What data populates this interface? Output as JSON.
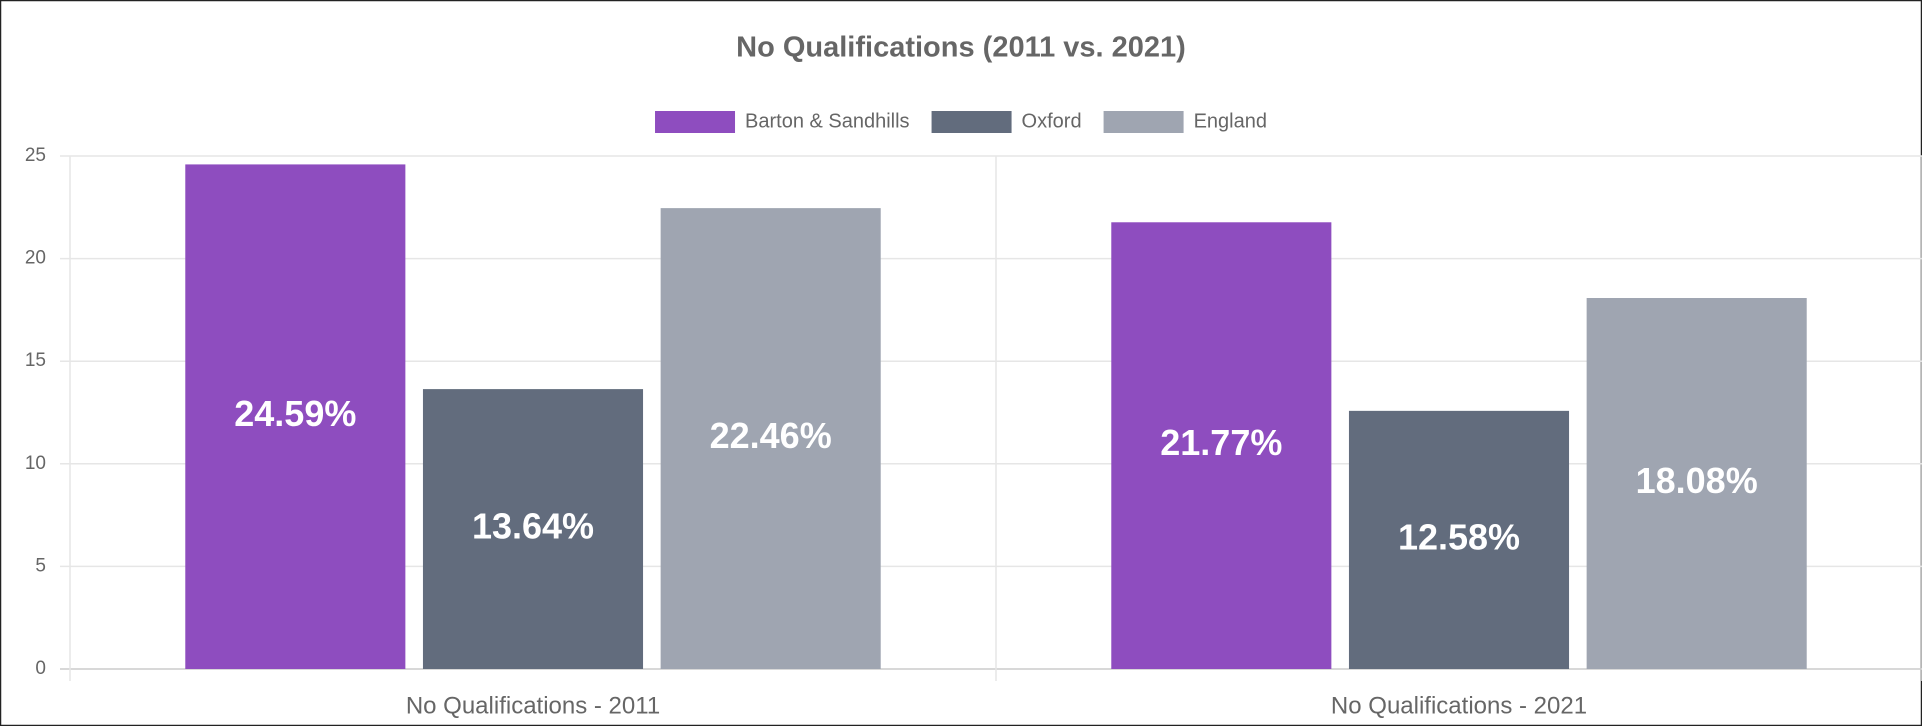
{
  "chart_data": {
    "type": "bar",
    "title": "No Qualifications (2011 vs. 2021)",
    "categories": [
      "No Qualifications - 2011",
      "No Qualifications - 2021"
    ],
    "series": [
      {
        "name": "Barton & Sandhills",
        "color": "#8e4dbf",
        "values": [
          24.59,
          21.77
        ],
        "value_labels": [
          "24.59%",
          "21.77%"
        ]
      },
      {
        "name": "Oxford",
        "color": "#626c7d",
        "values": [
          13.64,
          12.58
        ],
        "value_labels": [
          "13.64%",
          "12.58%"
        ]
      },
      {
        "name": "England",
        "color": "#9fa5b1",
        "values": [
          22.46,
          18.08
        ],
        "value_labels": [
          "22.46%",
          "18.08%"
        ]
      }
    ],
    "ylim": [
      0,
      25
    ],
    "yticks": [
      0,
      5,
      10,
      15,
      20,
      25
    ],
    "grid": true,
    "legend": "top"
  }
}
